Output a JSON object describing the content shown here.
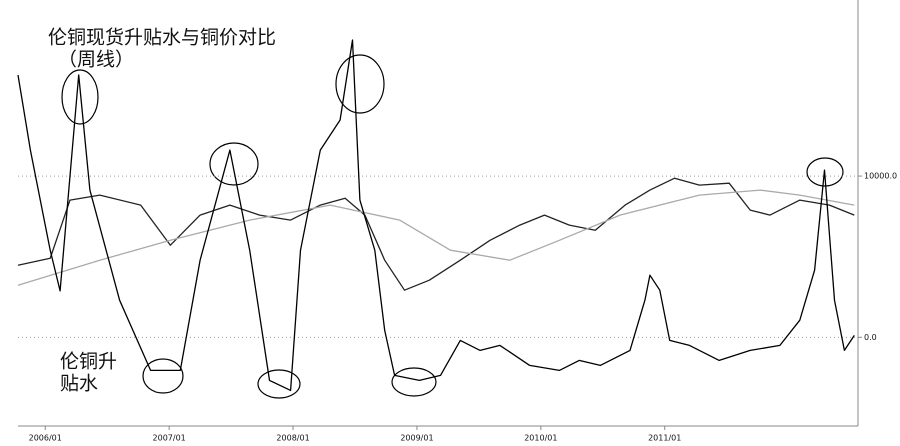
{
  "chart_data": {
    "type": "line",
    "title": "伦铜现货升贴水与铜价对比",
    "subtitle": "（周线）",
    "annotation": [
      "伦铜升",
      "贴水"
    ],
    "xlim": [
      2005.78,
      2012.56
    ],
    "xticks": [
      {
        "value": 2006.0,
        "label": "2006/01"
      },
      {
        "value": 2007.0,
        "label": "2007/01"
      },
      {
        "value": 2008.0,
        "label": "2008/01"
      },
      {
        "value": 2009.0,
        "label": "2009/01"
      },
      {
        "value": 2010.0,
        "label": "2010/01"
      },
      {
        "value": 2011.0,
        "label": "2011/01"
      }
    ],
    "ylim": [
      -5500,
      20300
    ],
    "yticks": [
      {
        "value": 0,
        "label": "0.0"
      },
      {
        "value": 10000,
        "label": "10000.0"
      }
    ],
    "grid": true,
    "series": [
      {
        "color": "#222222",
        "x": [
          2005.78,
          2006.04,
          2006.2,
          2006.44,
          2006.77,
          2007.01,
          2007.25,
          2007.49,
          2007.73,
          2007.98,
          2008.22,
          2008.42,
          2008.58,
          2008.74,
          2008.9,
          2009.1,
          2009.35,
          2009.59,
          2009.83,
          2010.03,
          2010.23,
          2010.44,
          2010.68,
          2010.88,
          2011.08,
          2011.28,
          2011.52,
          2011.69,
          2011.85,
          2012.09,
          2012.33,
          2012.53
        ],
        "values": [
          4470,
          4900,
          8510,
          8820,
          8200,
          5710,
          7580,
          8200,
          7580,
          7270,
          8200,
          8630,
          7580,
          4780,
          2920,
          3540,
          4780,
          6020,
          6960,
          7580,
          6960,
          6640,
          8200,
          9130,
          9870,
          9440,
          9560,
          7890,
          7580,
          8510,
          8200,
          7580
        ]
      },
      {
        "color": "#aaaaaa",
        "x": [
          2005.78,
          2006.44,
          2007.01,
          2007.65,
          2008.3,
          2008.86,
          2009.27,
          2009.75,
          2010.15,
          2010.64,
          2011.28,
          2011.77,
          2012.09,
          2012.53
        ],
        "values": [
          3230,
          4780,
          6020,
          7270,
          8200,
          7270,
          5400,
          4780,
          6020,
          7580,
          8820,
          9130,
          8820,
          8200
        ]
      },
      {
        "color": "#000000",
        "x": [
          2005.78,
          2005.88,
          2006.04,
          2006.12,
          2006.27,
          2006.36,
          2006.6,
          2006.85,
          2007.09,
          2007.25,
          2007.49,
          2007.65,
          2007.81,
          2007.98,
          2008.06,
          2008.22,
          2008.38,
          2008.48,
          2008.54,
          2008.66,
          2008.74,
          2008.82,
          2009.02,
          2009.19,
          2009.35,
          2009.51,
          2009.67,
          2009.91,
          2010.15,
          2010.31,
          2010.48,
          2010.72,
          2010.84,
          2010.88,
          2010.96,
          2011.04,
          2011.2,
          2011.44,
          2011.69,
          2011.93,
          2012.09,
          2012.21,
          2012.29,
          2012.37,
          2012.45,
          2012.53
        ],
        "values": [
          16270,
          11610,
          5400,
          2880,
          16270,
          9130,
          2300,
          -2050,
          -2050,
          4780,
          11610,
          5400,
          -2670,
          -3290,
          5400,
          11610,
          13480,
          18440,
          8510,
          5400,
          430,
          -2360,
          -2670,
          -2360,
          -190,
          -810,
          -500,
          -1740,
          -2050,
          -1430,
          -1740,
          -810,
          2300,
          3850,
          2920,
          -190,
          -500,
          -1430,
          -810,
          -500,
          1060,
          4160,
          10370,
          2300,
          -810,
          120
        ]
      }
    ]
  }
}
